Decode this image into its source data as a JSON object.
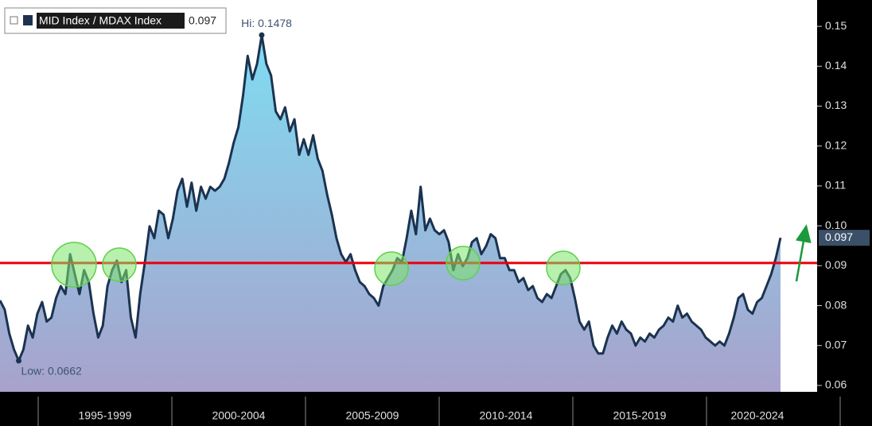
{
  "chart_data": {
    "type": "area-line",
    "series": [
      {
        "name": "MID Index / MDAX Index",
        "color": "#1b3350",
        "values": [
          0.0813,
          0.079,
          0.073,
          0.069,
          0.0662,
          0.069,
          0.075,
          0.072,
          0.078,
          0.0809,
          0.076,
          0.077,
          0.0819,
          0.0849,
          0.0829,
          0.0929,
          0.0879,
          0.0829,
          0.0889,
          0.0859,
          0.078,
          0.072,
          0.075,
          0.0849,
          0.0889,
          0.0913,
          0.0859,
          0.0889,
          0.077,
          0.072,
          0.0829,
          0.0909,
          0.0999,
          0.0969,
          0.1038,
          0.1028,
          0.0969,
          0.1018,
          0.1088,
          0.1118,
          0.1048,
          0.1108,
          0.1038,
          0.1098,
          0.1068,
          0.1098,
          0.1088,
          0.1098,
          0.1118,
          0.1158,
          0.1208,
          0.1247,
          0.1327,
          0.1426,
          0.1367,
          0.1406,
          0.1478,
          0.1406,
          0.1377,
          0.1287,
          0.1267,
          0.1297,
          0.1237,
          0.1267,
          0.1178,
          0.1217,
          0.1178,
          0.1227,
          0.1168,
          0.1138,
          0.1078,
          0.1028,
          0.0969,
          0.0929,
          0.0909,
          0.0929,
          0.0889,
          0.0859,
          0.0849,
          0.0829,
          0.0819,
          0.08,
          0.0849,
          0.0869,
          0.0889,
          0.0919,
          0.0909,
          0.0969,
          0.1038,
          0.0979,
          0.1098,
          0.0989,
          0.1018,
          0.0989,
          0.0979,
          0.0989,
          0.0959,
          0.0889,
          0.0929,
          0.0899,
          0.0919,
          0.0959,
          0.0969,
          0.0929,
          0.0949,
          0.0979,
          0.0969,
          0.0919,
          0.0919,
          0.0889,
          0.0889,
          0.0859,
          0.0869,
          0.0839,
          0.0849,
          0.0819,
          0.0809,
          0.0829,
          0.0819,
          0.0849,
          0.0879,
          0.0889,
          0.0869,
          0.0819,
          0.076,
          0.074,
          0.076,
          0.07,
          0.068,
          0.068,
          0.072,
          0.075,
          0.073,
          0.076,
          0.074,
          0.073,
          0.07,
          0.072,
          0.071,
          0.073,
          0.072,
          0.074,
          0.075,
          0.077,
          0.076,
          0.08,
          0.077,
          0.078,
          0.076,
          0.075,
          0.074,
          0.072,
          0.071,
          0.07,
          0.071,
          0.07,
          0.073,
          0.077,
          0.0819,
          0.0829,
          0.079,
          0.078,
          0.0809,
          0.0819,
          0.0849,
          0.0879,
          0.0919,
          0.097
        ]
      }
    ],
    "x_period_labels": [
      "1995-1999",
      "2000-2004",
      "2005-2009",
      "2010-2014",
      "2015-2019",
      "2020-2024"
    ],
    "ylim": [
      0.0584,
      0.1566
    ],
    "yticks": [
      0.06,
      0.07,
      0.08,
      0.09,
      {
        "value": 0.1,
        "label": "0.10"
      },
      0.11,
      0.12,
      0.13,
      0.14,
      0.15
    ],
    "reference_line": {
      "value": 0.0907,
      "color": "#e8000b"
    },
    "annotations": [
      {
        "text": "Hi: 0.1478"
      },
      {
        "text": "Low: 0.0662"
      }
    ],
    "grid": false
  }
}
